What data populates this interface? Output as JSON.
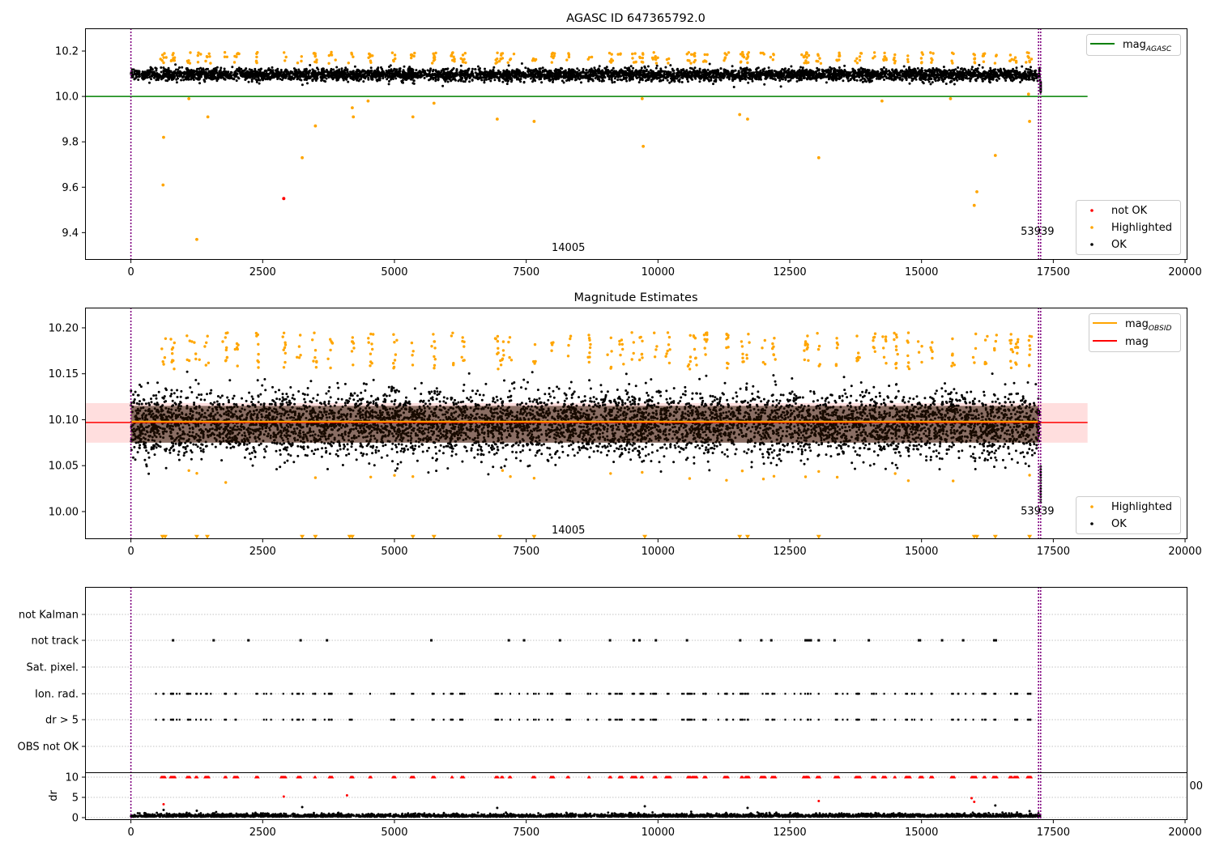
{
  "chart_data": [
    {
      "type": "scatter",
      "title": "AGASC ID 647365792.0",
      "xlim": [
        -870,
        20030
      ],
      "ylim": [
        9.28,
        10.3
      ],
      "xticks": [
        0,
        2500,
        5000,
        7500,
        10000,
        12500,
        15000,
        17500,
        20000
      ],
      "yticks": [
        9.4,
        9.6,
        9.8,
        10.0,
        10.2
      ],
      "ytick_labels": [
        "9.4",
        "9.6",
        "9.8",
        "10.0",
        "10.2"
      ],
      "band": {
        "center": 10.096,
        "spread": 0.03
      },
      "agasc_line": {
        "label": "mag",
        "label_sub": "AGASC",
        "color": "#008000",
        "y": 10.0,
        "x_range": [
          -870,
          18150
        ]
      },
      "vlines": [
        0,
        17220,
        17260
      ],
      "annotations": [
        {
          "text": "14005",
          "x": 8300,
          "y": 9.32
        },
        {
          "text": "53939",
          "x": 17200,
          "y": 9.39
        }
      ],
      "outliers_highlighted": [
        [
          620,
          9.82
        ],
        [
          610,
          9.61
        ],
        [
          1100,
          9.99
        ],
        [
          1460,
          9.91
        ],
        [
          1250,
          9.37
        ],
        [
          3250,
          9.73
        ],
        [
          3500,
          9.87
        ],
        [
          4200,
          9.95
        ],
        [
          4220,
          9.91
        ],
        [
          4500,
          9.98
        ],
        [
          5350,
          9.91
        ],
        [
          5750,
          9.97
        ],
        [
          6950,
          9.9
        ],
        [
          7650,
          9.89
        ],
        [
          9700,
          9.99
        ],
        [
          9720,
          9.78
        ],
        [
          11550,
          9.92
        ],
        [
          11700,
          9.9
        ],
        [
          13050,
          9.73
        ],
        [
          14250,
          9.98
        ],
        [
          15550,
          9.99
        ],
        [
          16000,
          9.52
        ],
        [
          16050,
          9.58
        ],
        [
          16400,
          9.74
        ],
        [
          17050,
          9.89
        ],
        [
          17030,
          10.01
        ]
      ],
      "outliers_notok": [
        [
          2900,
          9.55
        ]
      ],
      "legend_top": [
        {
          "label": "mag",
          "label_sub": "AGASC",
          "color": "#008000",
          "kind": "line"
        }
      ],
      "legend_bottom": [
        {
          "label": "not OK",
          "color": "#ff0000",
          "kind": "dot"
        },
        {
          "label": "Highlighted",
          "color": "#ffa500",
          "kind": "dot"
        },
        {
          "label": "OK",
          "color": "#000000",
          "kind": "dot"
        }
      ]
    },
    {
      "type": "scatter",
      "title": "Magnitude Estimates",
      "xlim": [
        -870,
        20030
      ],
      "ylim": [
        9.97,
        10.222
      ],
      "xticks": [
        0,
        2500,
        5000,
        7500,
        10000,
        12500,
        15000,
        17500,
        20000
      ],
      "yticks": [
        10.0,
        10.05,
        10.1,
        10.15,
        10.2
      ],
      "ytick_labels": [
        "10.00",
        "10.05",
        "10.10",
        "10.15",
        "10.20"
      ],
      "band": {
        "center": 10.096,
        "spread": 0.03
      },
      "mag_line": {
        "y": 10.097,
        "color": "#ff0000",
        "x_range": [
          -870,
          18150
        ]
      },
      "obsid_line": {
        "y": 10.098,
        "color": "#ffa500",
        "x_range": [
          0,
          17230
        ]
      },
      "error_band": {
        "y_range": [
          10.075,
          10.118
        ],
        "x_range": [
          -870,
          18150
        ],
        "color": "#ffc8c8"
      },
      "vlines": [
        0,
        17220,
        17260
      ],
      "annotations": [
        {
          "text": "14005",
          "x": 8300,
          "y": 9.976
        },
        {
          "text": "53939",
          "x": 17200,
          "y": 9.997
        }
      ],
      "offscale_x": [
        600,
        650,
        1250,
        1450,
        3250,
        3500,
        4150,
        4200,
        5350,
        5750,
        7000,
        7650,
        9750,
        11550,
        11700,
        13050,
        16000,
        16050,
        16400,
        17050
      ],
      "legend_top": [
        {
          "label": "mag",
          "label_sub": "OBSID",
          "color": "#ffa500",
          "kind": "line"
        },
        {
          "label": "mag",
          "label_sub": "",
          "color": "#ff0000",
          "kind": "line"
        }
      ],
      "legend_bottom": [
        {
          "label": "Highlighted",
          "color": "#ffa500",
          "kind": "dot"
        },
        {
          "label": "OK",
          "color": "#000000",
          "kind": "dot"
        }
      ]
    },
    {
      "type": "scatter",
      "title": "",
      "xlim": [
        -870,
        20030
      ],
      "flag_labels": [
        "not Kalman",
        "not track",
        "Sat. pixel.",
        "Ion. rad.",
        "dr > 5",
        "OBS not OK"
      ],
      "flag_x": {
        "not track": [
          800,
          1570,
          2230,
          3220,
          3720,
          5700,
          7170,
          7460,
          8140,
          9090,
          9540,
          9650,
          9960,
          10550,
          11560,
          11960,
          12150,
          12800,
          12830,
          12870,
          12900,
          13050,
          13350,
          14000,
          14950,
          14970,
          15390,
          15790,
          16380,
          16410
        ],
        "not Kalman": [],
        "Sat. pixel.": [],
        "OBS not OK": []
      },
      "dr_ylim": [
        -0.6,
        11
      ],
      "dr_yticks": [
        0,
        5,
        10
      ],
      "dr_ylabel": "dr",
      "dr_outliers": [
        [
          620,
          3.3
        ],
        [
          620,
          1.9
        ],
        [
          1250,
          1.7
        ],
        [
          2900,
          5.2
        ],
        [
          3250,
          2.6
        ],
        [
          4100,
          5.5
        ],
        [
          6950,
          2.4
        ],
        [
          9750,
          2.8
        ],
        [
          11700,
          2.4
        ],
        [
          13050,
          4.1
        ],
        [
          15950,
          4.8
        ],
        [
          16000,
          3.9
        ],
        [
          16400,
          3.0
        ],
        [
          17050,
          1.6
        ]
      ],
      "cut_tick_text": "00"
    }
  ]
}
